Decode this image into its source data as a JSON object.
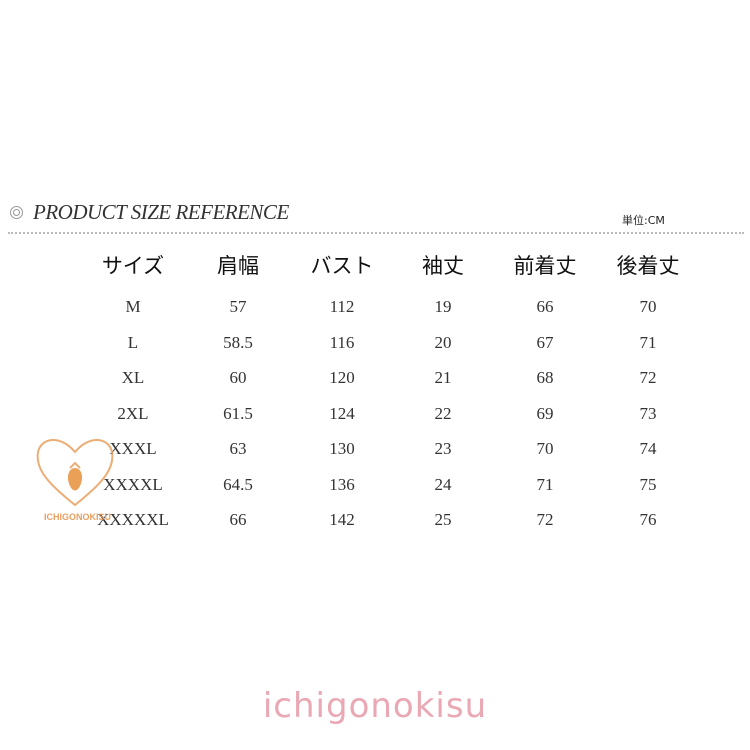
{
  "title": "PRODUCT SIZE REFERENCE",
  "unit": "単位:CM",
  "table": {
    "headers": [
      "サイズ",
      "肩幅",
      "バスト",
      "袖丈",
      "前着丈",
      "後着丈"
    ],
    "rows": [
      [
        "M",
        "57",
        "112",
        "19",
        "66",
        "70"
      ],
      [
        "L",
        "58.5",
        "116",
        "20",
        "67",
        "71"
      ],
      [
        "XL",
        "60",
        "120",
        "21",
        "68",
        "72"
      ],
      [
        "2XL",
        "61.5",
        "124",
        "22",
        "69",
        "73"
      ],
      [
        "XXXL",
        "63",
        "130",
        "23",
        "70",
        "74"
      ],
      [
        "XXXXL",
        "64.5",
        "136",
        "24",
        "71",
        "75"
      ],
      [
        "XXXXXL",
        "66",
        "142",
        "25",
        "72",
        "76"
      ]
    ]
  },
  "logo": {
    "text": "ICHIGONOKISU",
    "icon": "strawberry-heart-wreath-icon"
  },
  "brand": "ichigonokisu",
  "colors": {
    "brand": "#eaa8b4",
    "logo": "#e8a060"
  }
}
